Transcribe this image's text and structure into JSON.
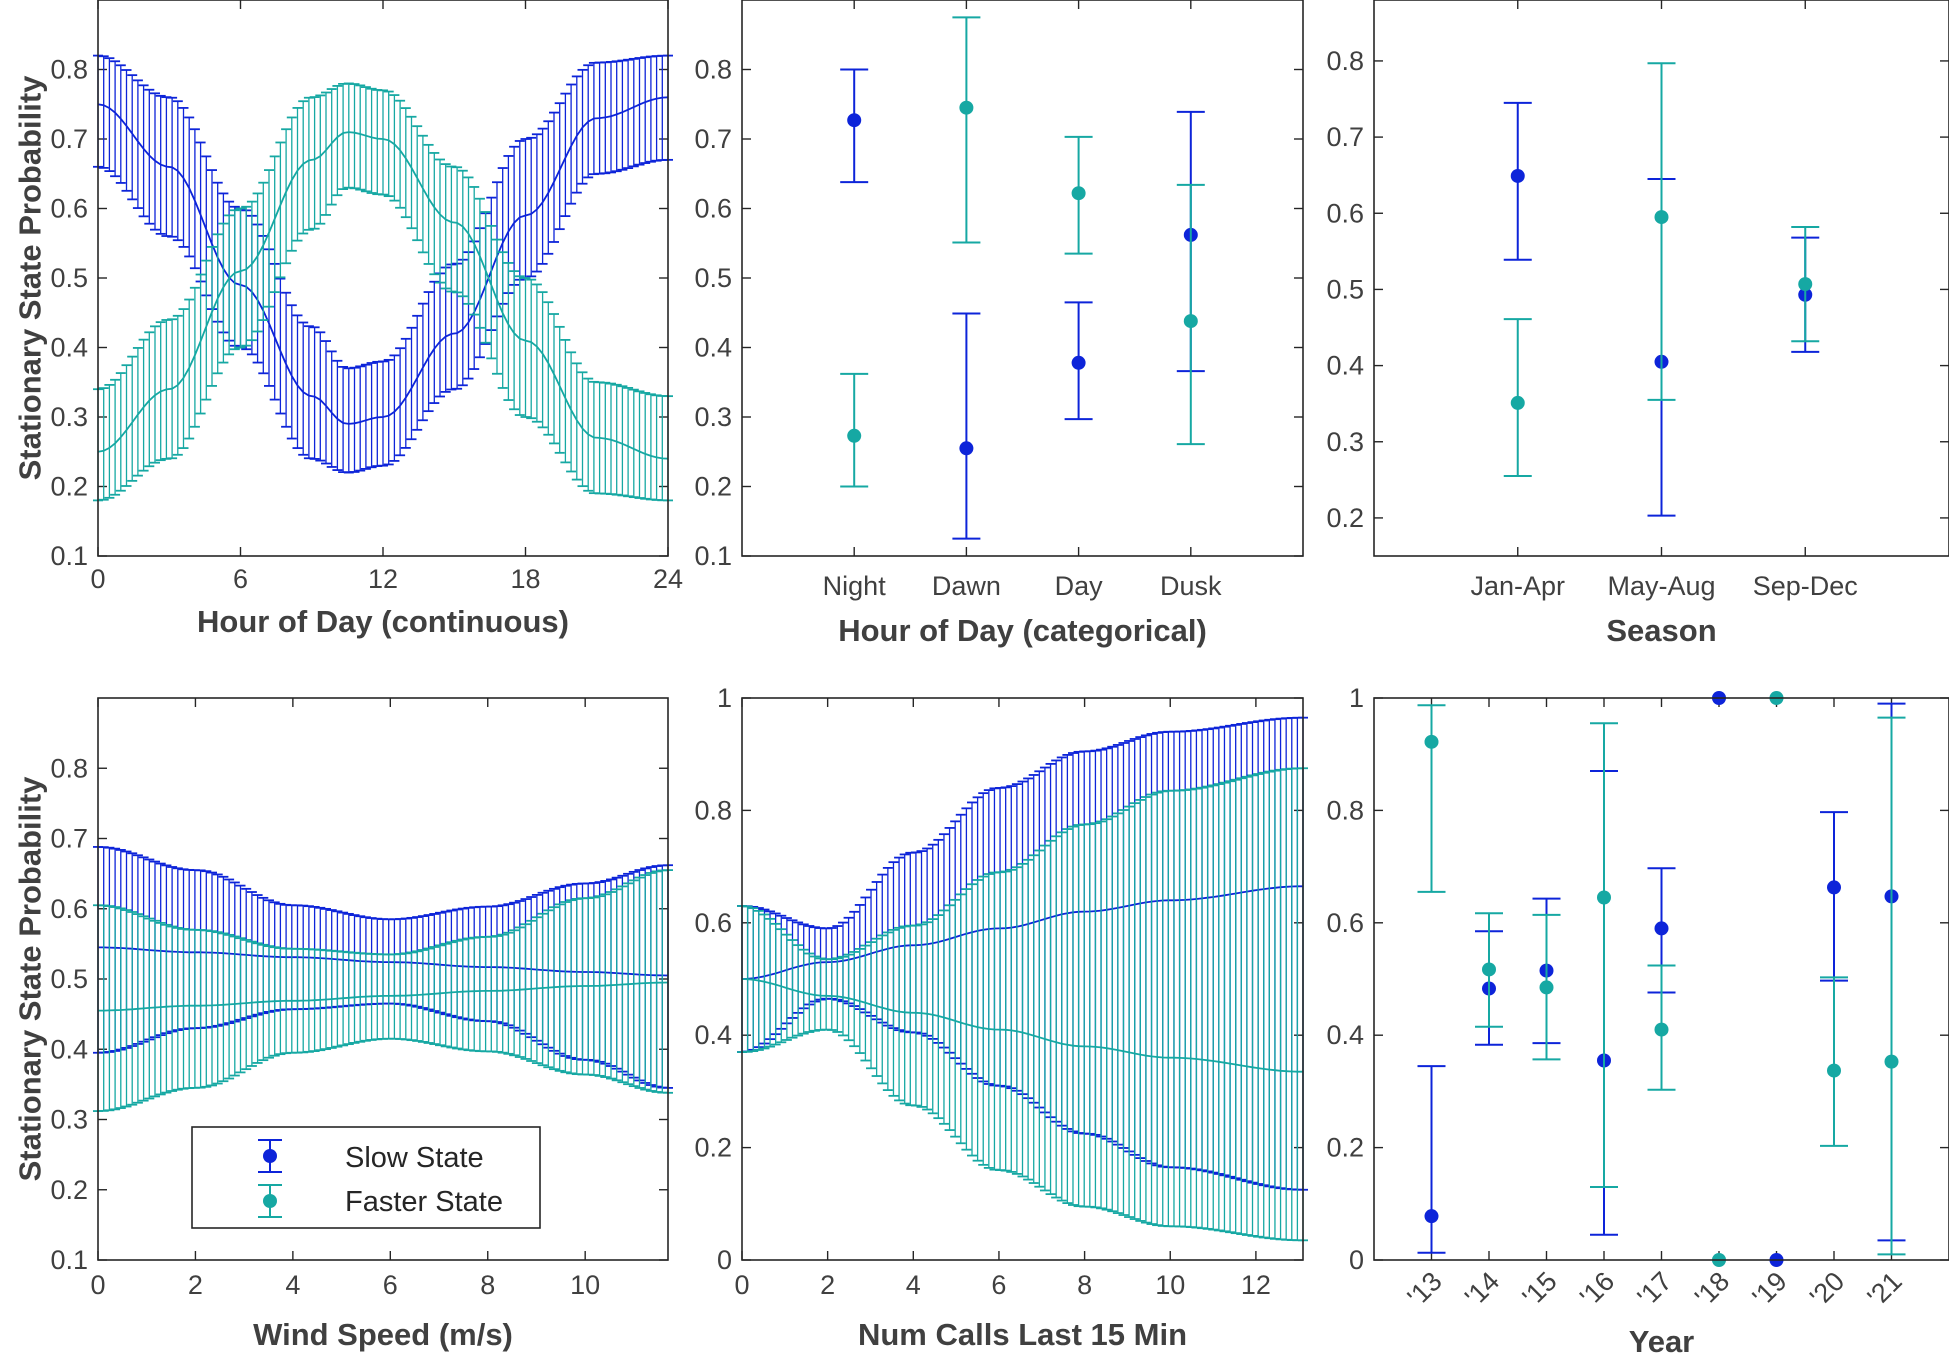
{
  "colors": {
    "slow": "#0D24D9",
    "faster": "#16A8A3",
    "axis": "#262626",
    "text": "#404040"
  },
  "legend": {
    "slow_label": "Slow State",
    "faster_label": "Faster State"
  },
  "chart_data": [
    {
      "id": "hour-continuous",
      "type": "line-errorbar",
      "xlabel": "Hour of Day (continuous)",
      "ylabel": "Stationary State Probability",
      "xlim": [
        0,
        24
      ],
      "ylim": [
        0.1,
        0.9
      ],
      "xticks": [
        0,
        6,
        12,
        18,
        24
      ],
      "xticklabels": [
        "0",
        "6",
        "12",
        "18",
        "24"
      ],
      "yticks": [
        0.1,
        0.2,
        0.3,
        0.4,
        0.5,
        0.6,
        0.7,
        0.8
      ],
      "yticklabels": [
        "0.1",
        "0.2",
        "0.3",
        "0.4",
        "0.5",
        "0.6",
        "0.7",
        "0.8"
      ],
      "series": [
        {
          "name": "Slow State",
          "x": [
            0,
            3,
            6,
            9,
            10.5,
            12,
            15,
            18,
            21,
            24
          ],
          "y": [
            0.75,
            0.66,
            0.49,
            0.33,
            0.29,
            0.3,
            0.42,
            0.59,
            0.73,
            0.76
          ],
          "lower": [
            0.66,
            0.56,
            0.4,
            0.24,
            0.22,
            0.23,
            0.34,
            0.5,
            0.65,
            0.67
          ],
          "upper": [
            0.82,
            0.76,
            0.6,
            0.43,
            0.37,
            0.38,
            0.52,
            0.7,
            0.81,
            0.82
          ]
        },
        {
          "name": "Faster State",
          "x": [
            0,
            3,
            6,
            9,
            10.5,
            12,
            15,
            18,
            21,
            24
          ],
          "y": [
            0.25,
            0.34,
            0.51,
            0.67,
            0.71,
            0.7,
            0.58,
            0.41,
            0.27,
            0.24
          ],
          "lower": [
            0.18,
            0.24,
            0.4,
            0.57,
            0.63,
            0.62,
            0.48,
            0.3,
            0.19,
            0.18
          ],
          "upper": [
            0.34,
            0.44,
            0.6,
            0.76,
            0.78,
            0.77,
            0.66,
            0.5,
            0.35,
            0.33
          ]
        }
      ]
    },
    {
      "id": "hour-categorical",
      "type": "point-errorbar",
      "xlabel": "Hour of Day (categorical)",
      "ylabel": "",
      "categories": [
        "Night",
        "Dawn",
        "Day",
        "Dusk"
      ],
      "ylim": [
        0.1,
        0.9
      ],
      "yticks": [
        0.1,
        0.2,
        0.3,
        0.4,
        0.5,
        0.6,
        0.7,
        0.8
      ],
      "yticklabels": [
        "0.1",
        "0.2",
        "0.3",
        "0.4",
        "0.5",
        "0.6",
        "0.7",
        "0.8"
      ],
      "series": [
        {
          "name": "Slow State",
          "values": [
            0.727,
            0.255,
            0.378,
            0.562
          ],
          "lower": [
            0.638,
            0.125,
            0.297,
            0.366
          ],
          "upper": [
            0.8,
            0.449,
            0.465,
            0.739
          ]
        },
        {
          "name": "Faster State",
          "values": [
            0.273,
            0.745,
            0.622,
            0.438
          ],
          "lower": [
            0.2,
            0.551,
            0.535,
            0.261
          ],
          "upper": [
            0.362,
            0.875,
            0.703,
            0.634
          ]
        }
      ]
    },
    {
      "id": "season",
      "type": "point-errorbar",
      "xlabel": "Season",
      "ylabel": "",
      "categories": [
        "Jan-Apr",
        "May-Aug",
        "Sep-Dec"
      ],
      "ylim": [
        0.15,
        0.88
      ],
      "yticks": [
        0.2,
        0.3,
        0.4,
        0.5,
        0.6,
        0.7,
        0.8
      ],
      "yticklabels": [
        "0.2",
        "0.3",
        "0.4",
        "0.5",
        "0.6",
        "0.7",
        "0.8"
      ],
      "series": [
        {
          "name": "Slow State",
          "values": [
            0.649,
            0.405,
            0.493
          ],
          "lower": [
            0.539,
            0.203,
            0.418
          ],
          "upper": [
            0.745,
            0.645,
            0.568
          ]
        },
        {
          "name": "Faster State",
          "values": [
            0.351,
            0.595,
            0.507
          ],
          "lower": [
            0.255,
            0.355,
            0.432
          ],
          "upper": [
            0.461,
            0.797,
            0.582
          ]
        }
      ]
    },
    {
      "id": "wind",
      "type": "line-errorbar",
      "xlabel": "Wind Speed (m/s)",
      "ylabel": "Stationary State Probability",
      "xlim": [
        0,
        11.7
      ],
      "ylim": [
        0.1,
        0.9
      ],
      "xticks": [
        0,
        2,
        4,
        6,
        8,
        10
      ],
      "xticklabels": [
        "0",
        "2",
        "4",
        "6",
        "8",
        "10"
      ],
      "yticks": [
        0.1,
        0.2,
        0.3,
        0.4,
        0.5,
        0.6,
        0.7,
        0.8
      ],
      "yticklabels": [
        "0.1",
        "0.2",
        "0.3",
        "0.4",
        "0.5",
        "0.6",
        "0.7",
        "0.8"
      ],
      "series": [
        {
          "name": "Slow State",
          "x": [
            0,
            2,
            4,
            6,
            8,
            10,
            11.7
          ],
          "y": [
            0.545,
            0.538,
            0.531,
            0.524,
            0.517,
            0.51,
            0.505
          ],
          "lower": [
            0.395,
            0.43,
            0.457,
            0.465,
            0.44,
            0.385,
            0.345
          ],
          "upper": [
            0.688,
            0.655,
            0.605,
            0.585,
            0.603,
            0.636,
            0.662
          ]
        },
        {
          "name": "Faster State",
          "x": [
            0,
            2,
            4,
            6,
            8,
            10,
            11.7
          ],
          "y": [
            0.455,
            0.462,
            0.469,
            0.476,
            0.483,
            0.49,
            0.495
          ],
          "lower": [
            0.312,
            0.345,
            0.395,
            0.415,
            0.397,
            0.364,
            0.338
          ],
          "upper": [
            0.605,
            0.57,
            0.543,
            0.535,
            0.56,
            0.615,
            0.655
          ]
        }
      ]
    },
    {
      "id": "calls",
      "type": "line-errorbar",
      "xlabel": "Num Calls Last 15 Min",
      "ylabel": "",
      "xlim": [
        0,
        13.1
      ],
      "ylim": [
        0,
        1
      ],
      "xticks": [
        0,
        2,
        4,
        6,
        8,
        10,
        12
      ],
      "xticklabels": [
        "0",
        "2",
        "4",
        "6",
        "8",
        "10",
        "12"
      ],
      "yticks": [
        0,
        0.2,
        0.4,
        0.6,
        0.8,
        1
      ],
      "yticklabels": [
        "0",
        "0.2",
        "0.4",
        "0.6",
        "0.8",
        "1"
      ],
      "series": [
        {
          "name": "Slow State",
          "x": [
            0,
            2,
            4,
            6,
            8,
            10,
            13.1
          ],
          "y": [
            0.5,
            0.53,
            0.56,
            0.59,
            0.62,
            0.64,
            0.665
          ],
          "lower": [
            0.37,
            0.465,
            0.405,
            0.31,
            0.225,
            0.165,
            0.125
          ],
          "upper": [
            0.63,
            0.59,
            0.725,
            0.84,
            0.905,
            0.94,
            0.965
          ]
        },
        {
          "name": "Faster State",
          "x": [
            0,
            2,
            4,
            6,
            8,
            10,
            13.1
          ],
          "y": [
            0.5,
            0.47,
            0.44,
            0.41,
            0.38,
            0.36,
            0.335
          ],
          "lower": [
            0.37,
            0.41,
            0.275,
            0.16,
            0.095,
            0.06,
            0.035
          ],
          "upper": [
            0.63,
            0.535,
            0.595,
            0.69,
            0.775,
            0.835,
            0.875
          ]
        }
      ]
    },
    {
      "id": "year",
      "type": "point-errorbar",
      "xlabel": "Year",
      "ylabel": "",
      "categories": [
        "'13",
        "'14",
        "'15",
        "'16",
        "'17",
        "'18",
        "'19",
        "'20",
        "'21"
      ],
      "ylim": [
        0,
        1
      ],
      "yticks": [
        0,
        0.2,
        0.4,
        0.6,
        0.8,
        1
      ],
      "yticklabels": [
        "0",
        "0.2",
        "0.4",
        "0.6",
        "0.8",
        "1"
      ],
      "series": [
        {
          "name": "Slow State",
          "values": [
            0.078,
            0.483,
            0.515,
            0.355,
            0.59,
            1.0,
            0.0,
            0.663,
            0.647
          ],
          "lower": [
            0.013,
            0.383,
            0.386,
            0.045,
            0.476,
            null,
            null,
            0.497,
            0.035
          ],
          "upper": [
            0.345,
            0.585,
            0.643,
            0.87,
            0.697,
            null,
            null,
            0.797,
            0.99
          ]
        },
        {
          "name": "Faster State",
          "values": [
            0.922,
            0.517,
            0.485,
            0.645,
            0.41,
            0.0,
            1.0,
            0.337,
            0.353
          ],
          "lower": [
            0.655,
            0.415,
            0.357,
            0.13,
            0.303,
            null,
            null,
            0.203,
            0.01
          ],
          "upper": [
            0.987,
            0.617,
            0.614,
            0.955,
            0.524,
            null,
            null,
            0.503,
            0.965
          ]
        }
      ]
    }
  ]
}
